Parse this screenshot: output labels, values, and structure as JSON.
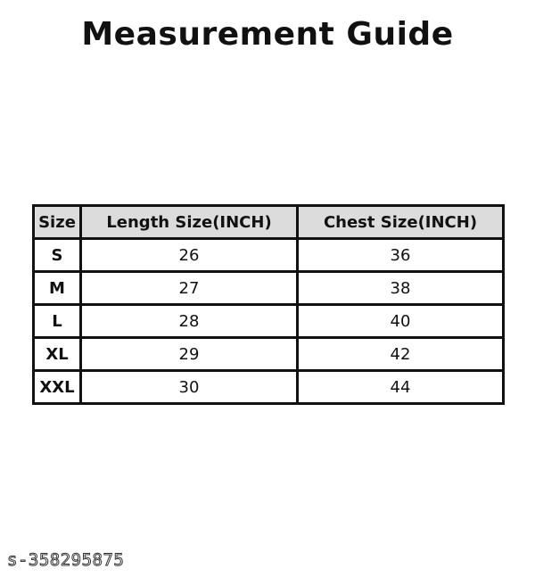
{
  "title": "Measurement Guide",
  "table": {
    "headers": [
      "Size",
      "Length Size(INCH)",
      "Chest Size(INCH)"
    ],
    "rows": [
      [
        "S",
        "26",
        "36"
      ],
      [
        "M",
        "27",
        "38"
      ],
      [
        "L",
        "28",
        "40"
      ],
      [
        "XL",
        "29",
        "42"
      ],
      [
        "XXL",
        "30",
        "44"
      ]
    ]
  },
  "watermark": "s-358295875"
}
